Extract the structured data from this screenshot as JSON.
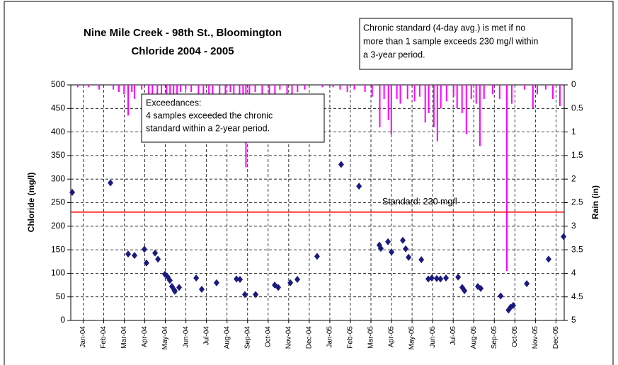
{
  "chart_data": {
    "type": "scatter",
    "title": [
      "Nine Mile Creek - 98th St., Bloomington",
      "Chloride 2004 - 2005"
    ],
    "y_label": "Chloride (mg/l)",
    "y2_label": "Rain (in)",
    "notes": [
      [
        "Chronic standard (4-day avg.) is met if no",
        "more than 1 sample exceeds 230 mg/l within",
        "a 3-year period."
      ],
      [
        "Exceedances:",
        "4 samples exceeded the chronic",
        "standard within a 2-year period."
      ]
    ],
    "reference_line": {
      "value": 230,
      "label": "Standard: 230 mg/l",
      "color": "#ff0000"
    },
    "grid": true,
    "xlim": [
      -0.6,
      23.4
    ],
    "xticks": [
      {
        "value": 0,
        "label": "Jan-04"
      },
      {
        "value": 1,
        "label": "Feb-04"
      },
      {
        "value": 2,
        "label": "Mar-04"
      },
      {
        "value": 3,
        "label": "Apr-04"
      },
      {
        "value": 4,
        "label": "May-04"
      },
      {
        "value": 5,
        "label": "Jun-04"
      },
      {
        "value": 6,
        "label": "Jul-04"
      },
      {
        "value": 7,
        "label": "Aug-04"
      },
      {
        "value": 8,
        "label": "Sep-04"
      },
      {
        "value": 9,
        "label": "Oct-04"
      },
      {
        "value": 10,
        "label": "Nov-04"
      },
      {
        "value": 11,
        "label": "Dec-04"
      },
      {
        "value": 12,
        "label": "Jan-05"
      },
      {
        "value": 13,
        "label": "Feb-05"
      },
      {
        "value": 14,
        "label": "Mar-05"
      },
      {
        "value": 15,
        "label": "Apr-05"
      },
      {
        "value": 16,
        "label": "May-05"
      },
      {
        "value": 17,
        "label": "Jun-05"
      },
      {
        "value": 18,
        "label": "Jul-05"
      },
      {
        "value": 19,
        "label": "Aug-05"
      },
      {
        "value": 20,
        "label": "Sep-05"
      },
      {
        "value": 21,
        "label": "Oct-05"
      },
      {
        "value": 22,
        "label": "Nov-05"
      },
      {
        "value": 23,
        "label": "Dec-05"
      }
    ],
    "ylim": [
      0,
      500
    ],
    "yticks": [
      0,
      50,
      100,
      150,
      200,
      250,
      300,
      350,
      400,
      450,
      500
    ],
    "y2lim": [
      5,
      0
    ],
    "y2ticks": [
      0,
      0.5,
      1,
      1.5,
      2,
      2.5,
      3,
      3.5,
      4,
      4.5,
      5
    ],
    "series": [
      {
        "type": "scatter",
        "color": "#1a1a80",
        "x": [
          -0.53,
          1.33,
          2.19,
          2.5,
          2.98,
          3.08,
          3.5,
          3.64,
          3.98,
          4.12,
          4.22,
          4.32,
          4.43,
          4.46,
          4.67,
          5.5,
          5.77,
          6.49,
          7.46,
          7.63,
          7.87,
          8.39,
          9.32,
          9.49,
          10.08,
          10.42,
          11.38,
          12.55,
          13.42,
          14.41,
          14.48,
          14.83,
          15.0,
          15.55,
          15.69,
          15.83,
          16.45,
          16.79,
          16.96,
          17.2,
          17.38,
          17.65,
          18.24,
          18.44,
          18.55,
          19.2,
          19.34,
          20.31,
          20.69,
          20.79,
          20.92,
          21.58,
          22.64,
          23.37
        ],
        "values": [
          272,
          292,
          141,
          138,
          151,
          122,
          143,
          130,
          98,
          92,
          85,
          72,
          65,
          62,
          70,
          90,
          66,
          80,
          88,
          87,
          55,
          55,
          75,
          70,
          80,
          87,
          136,
          331,
          285,
          160,
          153,
          167,
          145,
          170,
          152,
          134,
          129,
          88,
          90,
          89,
          88,
          90,
          92,
          70,
          63,
          72,
          68,
          52,
          22,
          28,
          32,
          78,
          130,
          178
        ]
      },
      {
        "type": "bar",
        "axis": "y2",
        "color": "#ff00ff",
        "x": [
          -0.26,
          0.26,
          0.78,
          1.47,
          1.74,
          1.99,
          2.19,
          2.37,
          2.5,
          2.85,
          3.19,
          3.37,
          3.61,
          3.81,
          4.06,
          4.23,
          4.4,
          4.57,
          4.74,
          4.99,
          5.26,
          5.61,
          5.85,
          6.12,
          6.3,
          6.64,
          6.92,
          7.16,
          7.33,
          7.61,
          7.78,
          7.92,
          8.09,
          8.37,
          8.71,
          9.06,
          9.33,
          9.57,
          9.92,
          10.16,
          10.43,
          10.78,
          11.64,
          12.16,
          12.5,
          12.85,
          13.19,
          13.71,
          14.06,
          14.43,
          14.64,
          14.85,
          14.99,
          15.26,
          15.43,
          15.78,
          16.12,
          16.37,
          16.64,
          16.81,
          17.06,
          17.23,
          17.4,
          17.68,
          18.02,
          18.19,
          18.43,
          18.64,
          18.88,
          19.12,
          19.3,
          19.5,
          19.92,
          20.26,
          20.61,
          20.85,
          21.47,
          21.88,
          22.09,
          22.5,
          22.85,
          23.19
        ],
        "values": [
          0.05,
          0.05,
          0.1,
          0.1,
          0.15,
          0.2,
          0.65,
          0.15,
          0.3,
          0.1,
          0.2,
          0.3,
          0.5,
          0.3,
          0.2,
          0.4,
          0.3,
          0.25,
          0.15,
          0.1,
          0.15,
          0.3,
          0.25,
          0.2,
          0.3,
          0.35,
          0.2,
          0.15,
          0.2,
          0.4,
          0.9,
          1.75,
          0.3,
          0.15,
          0.3,
          0.2,
          0.25,
          0.1,
          0.2,
          0.3,
          0.15,
          0.1,
          0.05,
          0.05,
          0.1,
          0.15,
          0.1,
          0.15,
          0.25,
          0.9,
          0.3,
          0.75,
          1.05,
          0.3,
          0.4,
          0.3,
          0.35,
          0.25,
          0.8,
          0.6,
          0.9,
          1.2,
          0.5,
          0.35,
          0.25,
          0.5,
          0.6,
          1.05,
          0.3,
          0.4,
          1.3,
          0.3,
          0.2,
          0.3,
          3.95,
          0.4,
          0.1,
          0.5,
          0.2,
          0.1,
          0.3,
          0.45
        ]
      }
    ]
  }
}
